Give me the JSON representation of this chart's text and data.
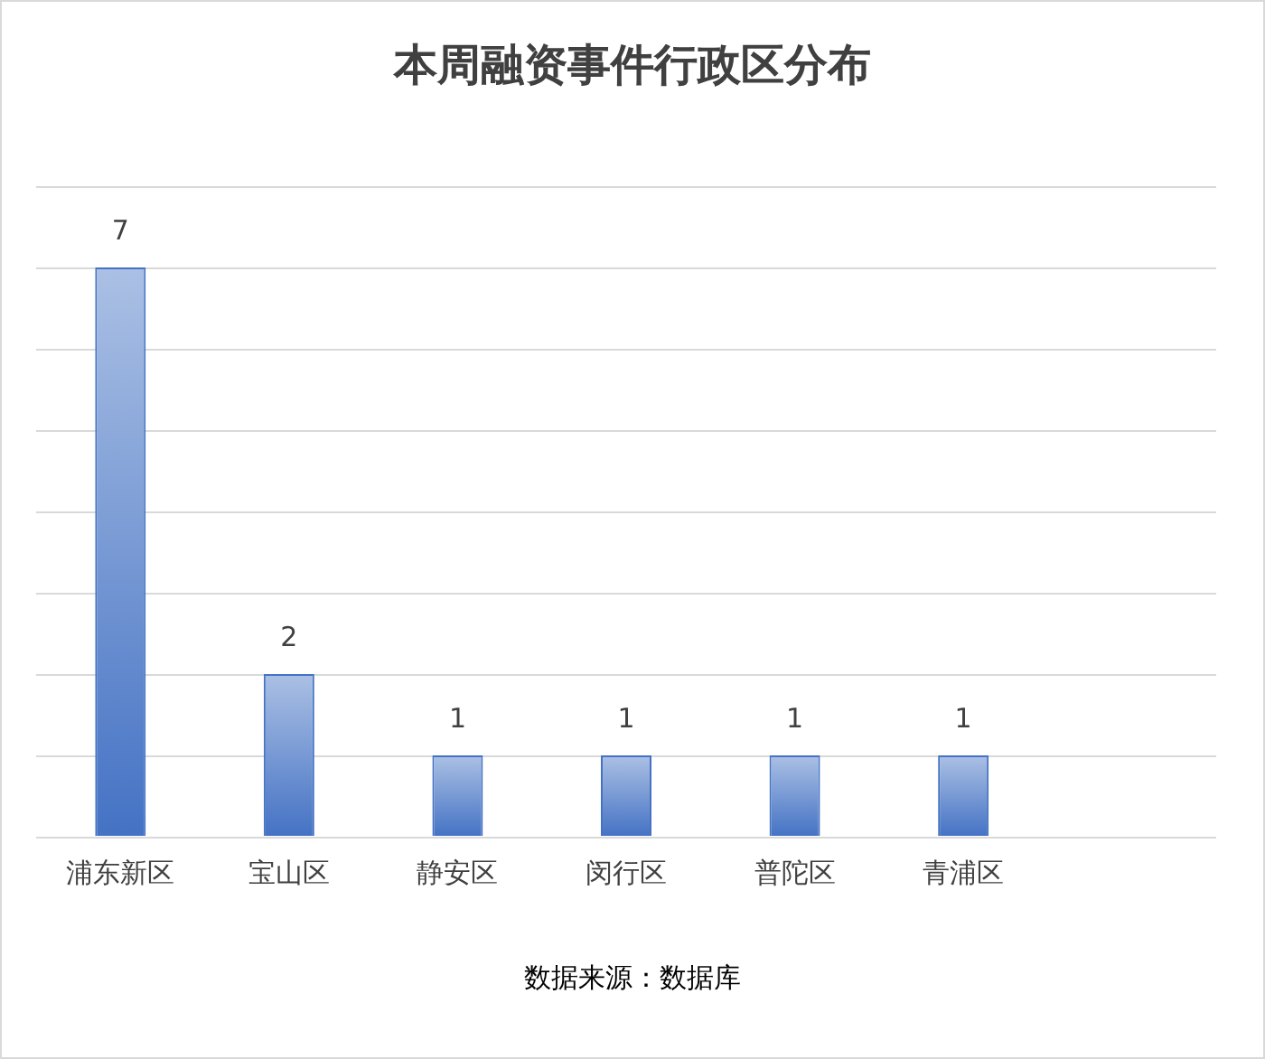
{
  "chart_data": {
    "type": "bar",
    "title": "本周融资事件行政区分布",
    "categories": [
      "浦东新区",
      "宝山区",
      "静安区",
      "闵行区",
      "普陀区",
      "青浦区",
      null
    ],
    "values": [
      7,
      2,
      1,
      1,
      1,
      1,
      null
    ],
    "color": "#4472c4",
    "ylim": [
      0,
      8
    ],
    "yticks": [
      {
        "value": 0,
        "label": null
      },
      {
        "value": 1,
        "label": null
      },
      {
        "value": 2,
        "label": null
      },
      {
        "value": 3,
        "label": null
      },
      {
        "value": 4,
        "label": null
      },
      {
        "value": 5,
        "label": null
      },
      {
        "value": 6,
        "label": null
      },
      {
        "value": 7,
        "label": null
      },
      {
        "value": 8,
        "label": null
      }
    ],
    "grid": "y",
    "tick_labels": "x",
    "data_labels": true,
    "annotations": [
      "数据来源：数据库"
    ]
  }
}
